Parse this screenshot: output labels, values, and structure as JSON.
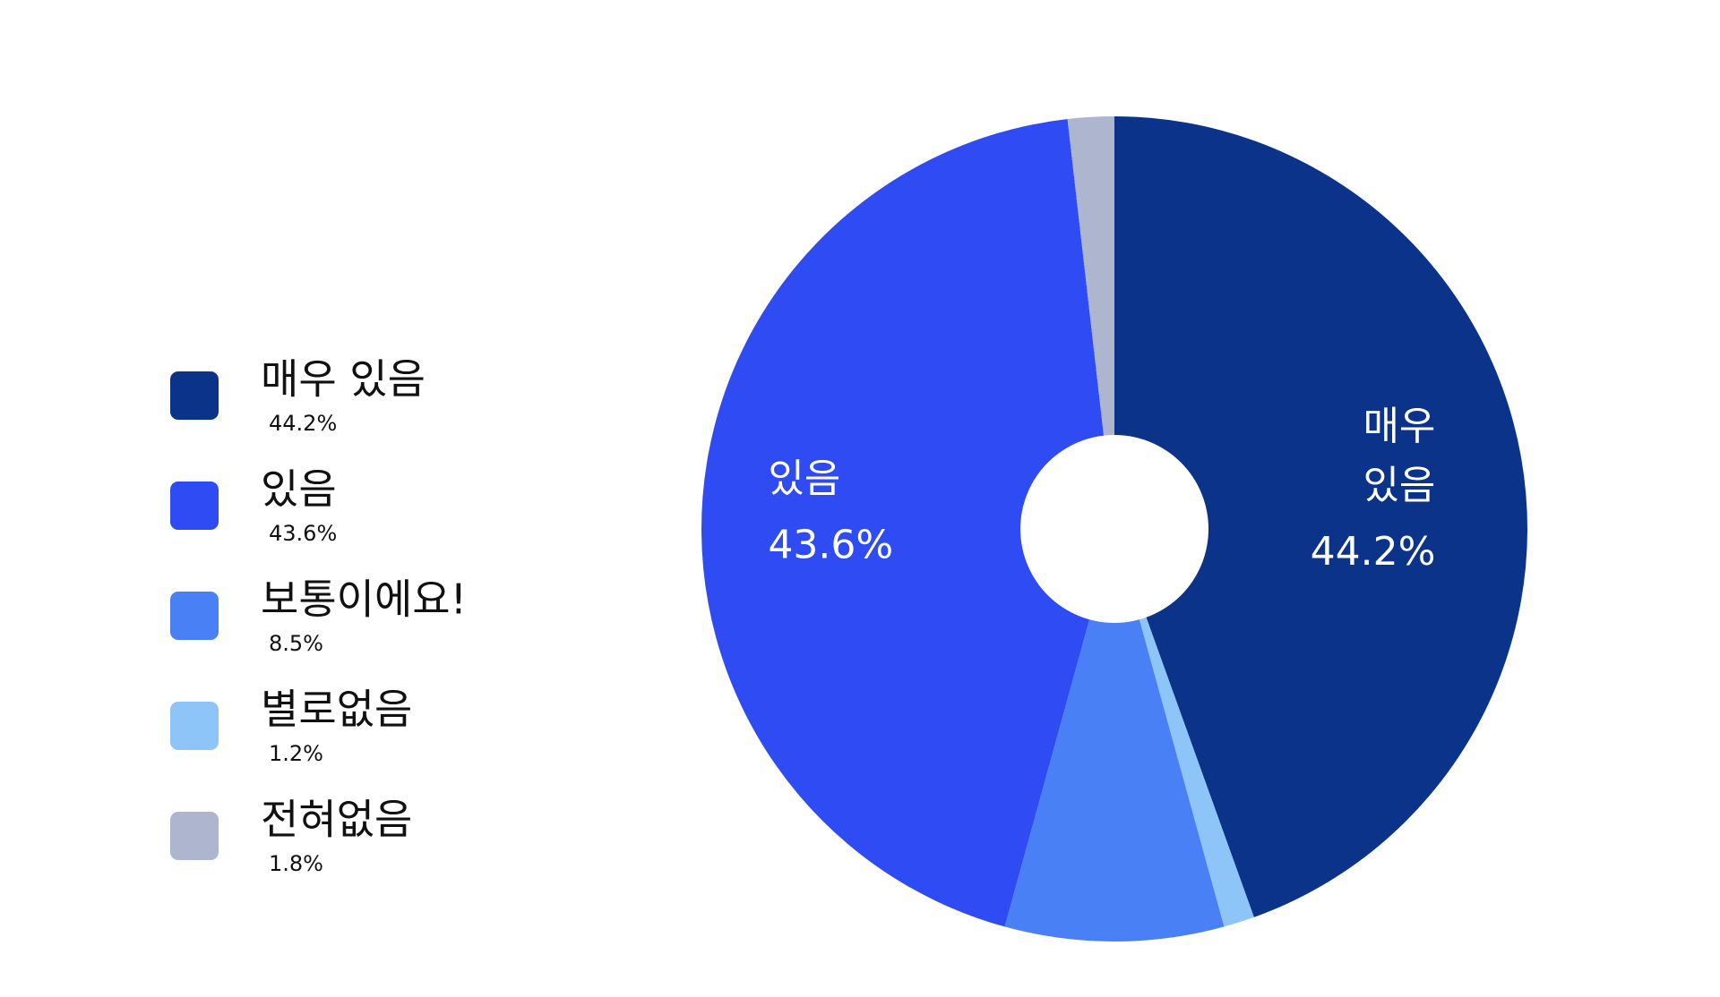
{
  "chart_data": {
    "type": "pie",
    "categories": [
      "매우 있음",
      "있음",
      "보통이에요!",
      "별로없음",
      "전혀없음"
    ],
    "values": [
      44.2,
      43.6,
      8.5,
      1.2,
      1.8
    ],
    "value_labels": [
      "44.2%",
      "43.6%",
      "8.5%",
      "1.2%",
      "1.8%"
    ],
    "colors": [
      "#0a3389",
      "#2f4bf3",
      "#4a80f5",
      "#8ec5f9",
      "#aeb5cf"
    ],
    "slice_order": [
      0,
      3,
      2,
      1,
      4
    ],
    "legend": "left"
  }
}
